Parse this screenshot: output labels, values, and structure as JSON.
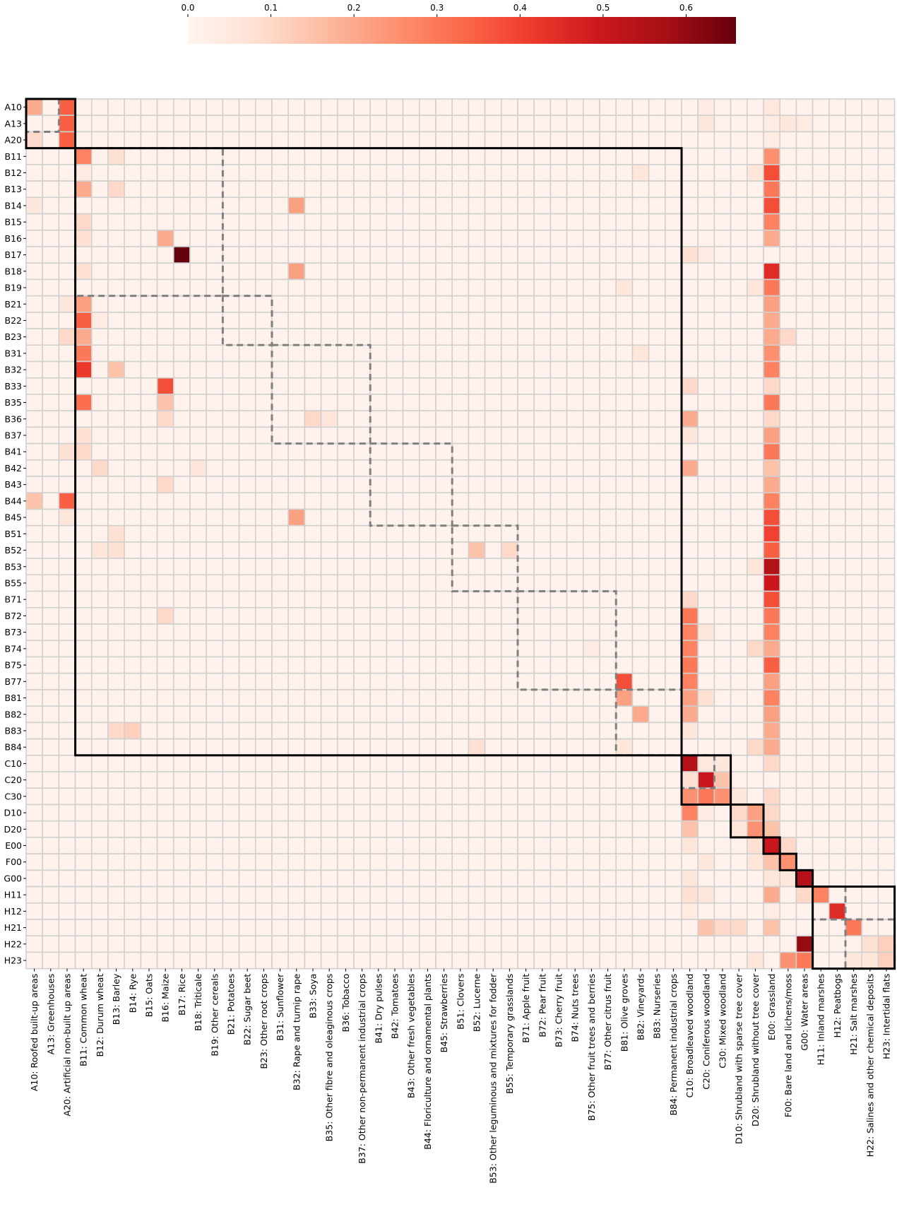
{
  "chart_data": {
    "type": "heatmap",
    "title": "",
    "xlabel": "",
    "ylabel": "",
    "colormap": "Reds",
    "value_range": [
      0,
      0.66
    ],
    "colorbar": {
      "orientation": "horizontal",
      "placement": "top",
      "ticks": [
        0.0,
        0.1,
        0.2,
        0.3,
        0.4,
        0.5,
        0.6
      ],
      "tick_labels": [
        "0.0",
        "0.1",
        "0.2",
        "0.3",
        "0.4",
        "0.5",
        "0.6"
      ]
    },
    "grid_line_color": "#d0d0d0",
    "row_labels": [
      "A10",
      "A13",
      "A20",
      "B11",
      "B12",
      "B13",
      "B14",
      "B15",
      "B16",
      "B17",
      "B18",
      "B19",
      "B21",
      "B22",
      "B23",
      "B31",
      "B32",
      "B33",
      "B35",
      "B36",
      "B37",
      "B41",
      "B42",
      "B43",
      "B44",
      "B45",
      "B51",
      "B52",
      "B53",
      "B55",
      "B71",
      "B72",
      "B73",
      "B74",
      "B75",
      "B77",
      "B81",
      "B82",
      "B83",
      "B84",
      "C10",
      "C20",
      "C30",
      "D10",
      "D20",
      "E00",
      "F00",
      "G00",
      "H11",
      "H12",
      "H21",
      "H22",
      "H23"
    ],
    "col_labels": [
      "A10: Roofed built-up areas",
      "A13: Greenhouses",
      "A20: Artificial non-built up areas",
      "B11: Common wheat",
      "B12: Durum wheat",
      "B13: Barley",
      "B14: Rye",
      "B15: Oats",
      "B16: Maize",
      "B17: Rice",
      "B18: Triticale",
      "B19: Other cereals",
      "B21: Potatoes",
      "B22: Sugar beet",
      "B23: Other root crops",
      "B31: Sunflower",
      "B32: Rape and turnip rape",
      "B33: Soya",
      "B35: Other fibre and oleaginous crops",
      "B36: Tobacco",
      "B37: Other non-permanent industrial crops",
      "B41: Dry pulses",
      "B42: Tomatoes",
      "B43: Other fresh vegetables",
      "B44: Floriculture and ornamental plants",
      "B45: Strawberries",
      "B51: Clovers",
      "B52: Lucerne",
      "B53: Other leguminous and mixtures for fodder",
      "B55: Temporary grasslands",
      "B71: Apple fruit",
      "B72: Pear fruit",
      "B73: Cherry fruit",
      "B74: Nuts trees",
      "B75: Other fruit trees and berries",
      "B77: Other citrus fruit",
      "B81: Olive groves",
      "B82: Vineyards",
      "B83: Nurseries",
      "B84: Permanent industrial crops",
      "C10: Broadleaved woodland",
      "C20: Coniferous woodland",
      "C30: Mixed woodland",
      "D10: Shrubland with sparse tree cover",
      "D20: Shrubland without tree cover",
      "E00: Grassland",
      "F00: Bare land and lichens/moss",
      "G00: Water areas",
      "H11: Inland marshes",
      "H12: Peatbogs",
      "H21: Salt marshes",
      "H22: Salines and other chemical deposits",
      "H23: Intertidal flats"
    ],
    "background_value": 0.015,
    "cells": [
      [
        "A10",
        "A10",
        0.2
      ],
      [
        "A10",
        "A20",
        0.35
      ],
      [
        "A13",
        "A20",
        0.35
      ],
      [
        "A20",
        "A10",
        0.1
      ],
      [
        "A20",
        "A20",
        0.35
      ],
      [
        "A10",
        "C20",
        0.04
      ],
      [
        "A10",
        "E00",
        0.05
      ],
      [
        "A13",
        "C20",
        0.06
      ],
      [
        "A13",
        "E00",
        0.04
      ],
      [
        "A13",
        "F00",
        0.06
      ],
      [
        "A13",
        "G00",
        0.04
      ],
      [
        "A20",
        "E00",
        0.04
      ],
      [
        "B11",
        "B11",
        0.28
      ],
      [
        "B11",
        "B13",
        0.08
      ],
      [
        "B11",
        "E00",
        0.25
      ],
      [
        "B12",
        "B11",
        0.04
      ],
      [
        "B12",
        "B82",
        0.06
      ],
      [
        "B12",
        "D20",
        0.06
      ],
      [
        "B12",
        "E00",
        0.38
      ],
      [
        "B13",
        "B11",
        0.2
      ],
      [
        "B13",
        "B13",
        0.1
      ],
      [
        "B13",
        "E00",
        0.3
      ],
      [
        "B14",
        "A10",
        0.05
      ],
      [
        "B14",
        "B32",
        0.22
      ],
      [
        "B14",
        "E00",
        0.38
      ],
      [
        "B15",
        "B11",
        0.1
      ],
      [
        "B15",
        "E00",
        0.28
      ],
      [
        "B16",
        "B11",
        0.08
      ],
      [
        "B16",
        "B16",
        0.2
      ],
      [
        "B16",
        "E00",
        0.2
      ],
      [
        "B17",
        "B17",
        0.66
      ],
      [
        "B17",
        "C10",
        0.08
      ],
      [
        "B17",
        "C20",
        0.04
      ],
      [
        "B18",
        "B11",
        0.08
      ],
      [
        "B18",
        "B32",
        0.22
      ],
      [
        "B18",
        "E00",
        0.45
      ],
      [
        "B19",
        "B81",
        0.06
      ],
      [
        "B19",
        "D20",
        0.06
      ],
      [
        "B19",
        "E00",
        0.3
      ],
      [
        "B21",
        "A20",
        0.06
      ],
      [
        "B21",
        "B11",
        0.22
      ],
      [
        "B21",
        "E00",
        0.22
      ],
      [
        "B22",
        "B11",
        0.35
      ],
      [
        "B22",
        "B12",
        0.04
      ],
      [
        "B22",
        "E00",
        0.2
      ],
      [
        "B23",
        "A20",
        0.1
      ],
      [
        "B23",
        "B11",
        0.2
      ],
      [
        "B23",
        "E00",
        0.2
      ],
      [
        "B23",
        "F00",
        0.1
      ],
      [
        "B31",
        "B11",
        0.3
      ],
      [
        "B31",
        "B82",
        0.06
      ],
      [
        "B31",
        "E00",
        0.25
      ],
      [
        "B32",
        "B11",
        0.42
      ],
      [
        "B32",
        "B13",
        0.15
      ],
      [
        "B32",
        "E00",
        0.28
      ],
      [
        "B33",
        "B16",
        0.38
      ],
      [
        "B33",
        "C10",
        0.1
      ],
      [
        "B33",
        "E00",
        0.1
      ],
      [
        "B35",
        "B11",
        0.32
      ],
      [
        "B35",
        "B16",
        0.15
      ],
      [
        "B35",
        "E00",
        0.3
      ],
      [
        "B36",
        "B16",
        0.1
      ],
      [
        "B36",
        "B33",
        0.1
      ],
      [
        "B36",
        "B35",
        0.06
      ],
      [
        "B36",
        "C10",
        0.2
      ],
      [
        "B36",
        "E00",
        0.1
      ],
      [
        "B37",
        "B11",
        0.08
      ],
      [
        "B37",
        "C10",
        0.06
      ],
      [
        "B37",
        "E00",
        0.22
      ],
      [
        "B41",
        "A20",
        0.08
      ],
      [
        "B41",
        "B11",
        0.1
      ],
      [
        "B41",
        "E00",
        0.3
      ],
      [
        "B42",
        "B12",
        0.1
      ],
      [
        "B42",
        "B18",
        0.06
      ],
      [
        "B42",
        "C10",
        0.2
      ],
      [
        "B42",
        "E00",
        0.15
      ],
      [
        "B43",
        "B16",
        0.1
      ],
      [
        "B43",
        "E00",
        0.2
      ],
      [
        "B44",
        "A10",
        0.15
      ],
      [
        "B44",
        "A20",
        0.35
      ],
      [
        "B44",
        "E00",
        0.28
      ],
      [
        "B45",
        "A20",
        0.06
      ],
      [
        "B45",
        "B32",
        0.22
      ],
      [
        "B45",
        "E00",
        0.38
      ],
      [
        "B51",
        "B13",
        0.08
      ],
      [
        "B51",
        "E00",
        0.4
      ],
      [
        "B52",
        "B12",
        0.06
      ],
      [
        "B52",
        "B13",
        0.08
      ],
      [
        "B52",
        "B52",
        0.15
      ],
      [
        "B52",
        "B55",
        0.1
      ],
      [
        "B52",
        "E00",
        0.35
      ],
      [
        "B53",
        "D20",
        0.06
      ],
      [
        "B53",
        "E00",
        0.55
      ],
      [
        "B55",
        "E00",
        0.5
      ],
      [
        "B71",
        "C10",
        0.1
      ],
      [
        "B71",
        "E00",
        0.38
      ],
      [
        "B72",
        "B16",
        0.1
      ],
      [
        "B72",
        "C10",
        0.3
      ],
      [
        "B72",
        "E00",
        0.3
      ],
      [
        "B73",
        "C10",
        0.28
      ],
      [
        "B73",
        "C20",
        0.06
      ],
      [
        "B73",
        "E00",
        0.28
      ],
      [
        "B74",
        "B75",
        0.04
      ],
      [
        "B74",
        "C10",
        0.28
      ],
      [
        "B74",
        "D20",
        0.1
      ],
      [
        "B74",
        "E00",
        0.2
      ],
      [
        "B75",
        "C10",
        0.3
      ],
      [
        "B75",
        "E00",
        0.35
      ],
      [
        "B77",
        "B81",
        0.38
      ],
      [
        "B77",
        "C10",
        0.28
      ],
      [
        "B77",
        "E00",
        0.22
      ],
      [
        "B81",
        "B81",
        0.22
      ],
      [
        "B81",
        "C10",
        0.22
      ],
      [
        "B81",
        "C20",
        0.08
      ],
      [
        "B81",
        "E00",
        0.28
      ],
      [
        "B82",
        "B82",
        0.2
      ],
      [
        "B82",
        "C10",
        0.2
      ],
      [
        "B82",
        "E00",
        0.22
      ],
      [
        "B83",
        "B13",
        0.1
      ],
      [
        "B83",
        "B14",
        0.12
      ],
      [
        "B83",
        "C10",
        0.06
      ],
      [
        "B83",
        "E00",
        0.2
      ],
      [
        "B84",
        "B52",
        0.08
      ],
      [
        "B84",
        "B81",
        0.06
      ],
      [
        "B84",
        "D20",
        0.1
      ],
      [
        "B84",
        "E00",
        0.2
      ],
      [
        "C10",
        "C10",
        0.55
      ],
      [
        "C10",
        "C20",
        0.05
      ],
      [
        "C10",
        "C30",
        0.05
      ],
      [
        "C10",
        "E00",
        0.1
      ],
      [
        "C20",
        "C10",
        0.08
      ],
      [
        "C20",
        "C20",
        0.5
      ],
      [
        "C20",
        "C30",
        0.15
      ],
      [
        "C30",
        "C10",
        0.25
      ],
      [
        "C30",
        "C20",
        0.3
      ],
      [
        "C30",
        "C30",
        0.25
      ],
      [
        "C30",
        "D10",
        0.06
      ],
      [
        "C30",
        "E00",
        0.1
      ],
      [
        "D10",
        "C10",
        0.28
      ],
      [
        "D10",
        "C20",
        0.04
      ],
      [
        "D10",
        "D10",
        0.1
      ],
      [
        "D10",
        "D20",
        0.22
      ],
      [
        "D10",
        "E00",
        0.1
      ],
      [
        "D20",
        "C10",
        0.15
      ],
      [
        "D20",
        "D10",
        0.06
      ],
      [
        "D20",
        "D20",
        0.25
      ],
      [
        "D20",
        "E00",
        0.15
      ],
      [
        "E00",
        "C10",
        0.06
      ],
      [
        "E00",
        "D20",
        0.08
      ],
      [
        "E00",
        "E00",
        0.5
      ],
      [
        "E00",
        "F00",
        0.1
      ],
      [
        "F00",
        "C20",
        0.06
      ],
      [
        "F00",
        "D20",
        0.06
      ],
      [
        "F00",
        "E00",
        0.15
      ],
      [
        "F00",
        "F00",
        0.25
      ],
      [
        "G00",
        "C10",
        0.06
      ],
      [
        "G00",
        "E00",
        0.06
      ],
      [
        "G00",
        "F00",
        0.06
      ],
      [
        "G00",
        "G00",
        0.55
      ],
      [
        "H11",
        "C10",
        0.08
      ],
      [
        "H11",
        "C20",
        0.06
      ],
      [
        "H11",
        "E00",
        0.2
      ],
      [
        "H11",
        "G00",
        0.1
      ],
      [
        "H11",
        "H11",
        0.28
      ],
      [
        "H12",
        "C10",
        0.04
      ],
      [
        "H12",
        "E00",
        0.04
      ],
      [
        "H12",
        "H12",
        0.45
      ],
      [
        "H21",
        "C20",
        0.15
      ],
      [
        "H21",
        "C30",
        0.1
      ],
      [
        "H21",
        "D10",
        0.1
      ],
      [
        "H21",
        "E00",
        0.15
      ],
      [
        "H21",
        "H21",
        0.3
      ],
      [
        "H22",
        "G00",
        0.6
      ],
      [
        "H22",
        "H22",
        0.08
      ],
      [
        "H22",
        "H23",
        0.12
      ],
      [
        "H23",
        "D20",
        0.06
      ],
      [
        "H23",
        "F00",
        0.25
      ],
      [
        "H23",
        "G00",
        0.3
      ],
      [
        "H23",
        "H21",
        0.06
      ],
      [
        "H23",
        "H22",
        0.06
      ],
      [
        "H23",
        "H23",
        0.12
      ]
    ],
    "solid_blocks": [
      [
        "A10",
        "A20"
      ],
      [
        "B11",
        "B84"
      ],
      [
        "C10",
        "C30"
      ],
      [
        "D10",
        "D20"
      ],
      [
        "E00",
        "E00"
      ],
      [
        "F00",
        "F00"
      ],
      [
        "G00",
        "G00"
      ],
      [
        "H11",
        "H23"
      ]
    ],
    "dashed_blocks": [
      [
        "A10",
        "A13"
      ],
      [
        "B11",
        "B19"
      ],
      [
        "B21",
        "B23"
      ],
      [
        "B31",
        "B37"
      ],
      [
        "B41",
        "B45"
      ],
      [
        "B51",
        "B55"
      ],
      [
        "B71",
        "B77"
      ],
      [
        "B81",
        "B84"
      ],
      [
        "C10",
        "C20"
      ],
      [
        "H11",
        "H12"
      ],
      [
        "H21",
        "H23"
      ]
    ]
  }
}
